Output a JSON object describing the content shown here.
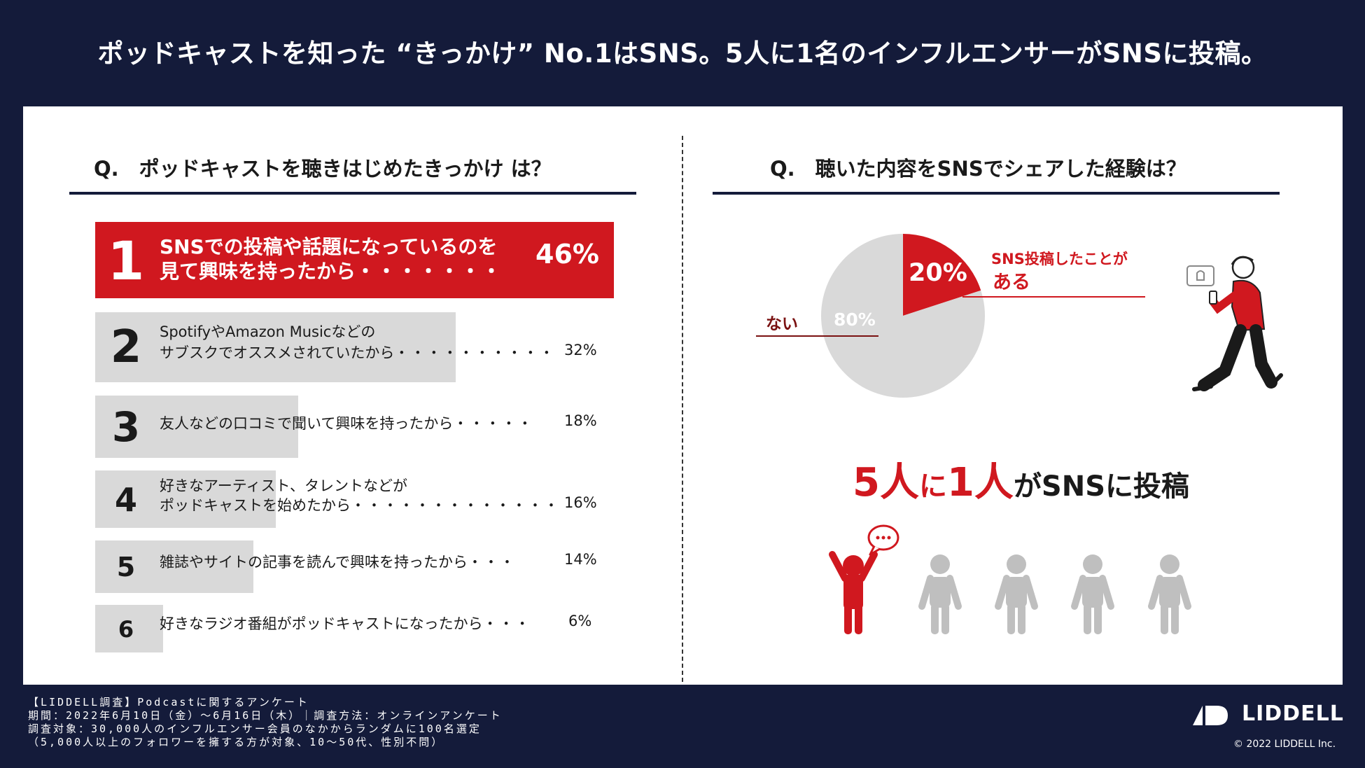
{
  "title": "ポッドキャストを知った “きっかけ” No.1はSNS。5人に1名のインフルエンサーがSNSに投稿。",
  "left": {
    "question": "Q.　ポッドキャストを聴きはじめたきっかけ は？"
  },
  "right": {
    "question": "Q.　聴いた内容をSNSでシェアした経験は？",
    "headline": {
      "num1": "5人",
      "ni": "に",
      "num2": "1人",
      "rest": "がSNSに投稿"
    }
  },
  "chart_data": [
    {
      "type": "bar",
      "title": "Q.　ポッドキャストを聴きはじめたきっかけ は？",
      "items": [
        {
          "rank": "1",
          "line1": "SNSでの投稿や話題になっているのを",
          "line2": "見て興味を持ったから",
          "dots": "・・・・・・・",
          "pct_label": "46%",
          "value": 46
        },
        {
          "rank": "2",
          "line1": "SpotifyやAmazon Musicなどの",
          "line2": "サブスクでオススメされていたから",
          "dots": "・・・・・・・・・・",
          "pct_label": "32%",
          "value": 32
        },
        {
          "rank": "3",
          "line1": "",
          "line2": "友人などの口コミで聞いて興味を持ったから",
          "dots": "・・・・・",
          "pct_label": "18%",
          "value": 18
        },
        {
          "rank": "4",
          "line1": "好きなアーティスト、タレントなどが",
          "line2": "ポッドキャストを始めたから",
          "dots": "・・・・・・・・・・・・・",
          "pct_label": "16%",
          "value": 16
        },
        {
          "rank": "5",
          "line1": "",
          "line2": "雑誌やサイトの記事を読んで興味を持ったから",
          "dots": "・・・",
          "pct_label": "14%",
          "value": 14
        },
        {
          "rank": "6",
          "line1": "",
          "line2": "好きなラジオ番組がポッドキャストになったから",
          "dots": "・・・",
          "pct_label": "6%",
          "value": 6
        }
      ],
      "colors": {
        "top": "#d0181f",
        "others": "#d9d9d9"
      }
    },
    {
      "type": "pie",
      "title": "Q.　聴いた内容をSNSでシェアした経験は？",
      "slices": [
        {
          "label_line1": "SNS投稿したことが",
          "label_line2": "ある",
          "pct_label": "20%",
          "value": 20,
          "color": "#d0181f"
        },
        {
          "label_line1": "ない",
          "label_line2": "",
          "pct_label": "80%",
          "value": 80,
          "color": "#d9d9d9"
        }
      ]
    }
  ],
  "people": {
    "total": 5,
    "highlighted": 1,
    "highlight_color": "#d0181f",
    "other_color": "#bfbfbf"
  },
  "footer": {
    "lines": [
      "【LIDDELL調査】Podcastに関するアンケート",
      "期間：2022年6月10日（金）〜6月16日（木）｜調査方法：オンラインアンケート",
      "調査対象：30,000人のインフルエンサー会員のなかからランダムに100名選定",
      "（5,000人以上のフォロワーを擁する方が対象、10〜50代、性別不問）"
    ],
    "logo": "LIDDELL",
    "copyright": "© 2022 LIDDELL Inc."
  }
}
